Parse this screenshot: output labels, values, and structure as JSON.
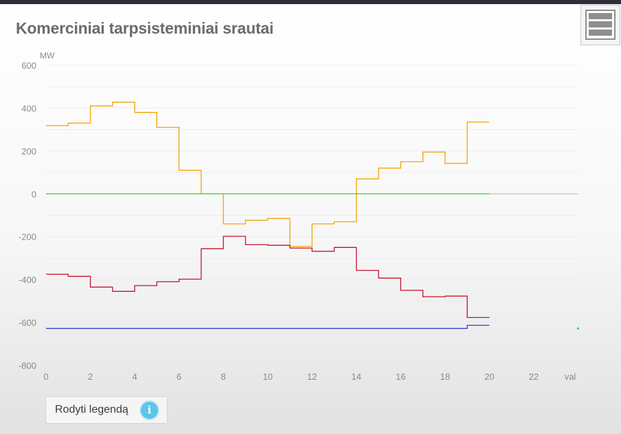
{
  "page": {
    "title": "Komerciniai tarpsisteminiai srautai",
    "legend_button_label": "Rodyti legendą",
    "info_icon_glyph": "i"
  },
  "icons": {
    "menu": "hamburger-menu-icon",
    "info": "info-icon"
  },
  "chart_data": {
    "type": "line",
    "step": true,
    "ylabel": "MW",
    "xlabel": "val",
    "xlim": [
      0,
      24
    ],
    "ylim": [
      -800,
      600
    ],
    "x_ticks": [
      0,
      2,
      4,
      6,
      8,
      10,
      12,
      14,
      16,
      18,
      20,
      22
    ],
    "y_ticks": [
      -800,
      -600,
      -400,
      -200,
      0,
      200,
      400,
      600
    ],
    "grid": true,
    "series": [
      {
        "color": "#f5a300",
        "x": [
          0,
          1,
          2,
          3,
          4,
          5,
          6,
          7,
          8,
          9,
          10,
          11,
          12,
          13,
          14,
          15,
          16,
          17,
          18,
          19,
          20
        ],
        "values": [
          318,
          330,
          410,
          428,
          380,
          310,
          110,
          0,
          -140,
          -123,
          -115,
          -245,
          -140,
          -130,
          70,
          120,
          150,
          195,
          142,
          335,
          335
        ]
      },
      {
        "color": "#c8102e",
        "x": [
          0,
          1,
          2,
          3,
          4,
          5,
          6,
          7,
          8,
          9,
          10,
          11,
          12,
          13,
          14,
          15,
          16,
          17,
          18,
          19,
          20
        ],
        "values": [
          -375,
          -385,
          -435,
          -455,
          -428,
          -410,
          -398,
          -256,
          -198,
          -237,
          -240,
          -253,
          -268,
          -250,
          -357,
          -393,
          -450,
          -480,
          -477,
          -577,
          -577
        ]
      },
      {
        "color": "#3d3dd6",
        "x": [
          0,
          19,
          20
        ],
        "values": [
          -628,
          -613,
          -613
        ]
      },
      {
        "color": "#3bd63b",
        "x": [
          0,
          20
        ],
        "values": [
          0,
          0
        ]
      },
      {
        "color": "#3bd63b",
        "x": [
          24
        ],
        "values": [
          -628
        ]
      }
    ]
  }
}
